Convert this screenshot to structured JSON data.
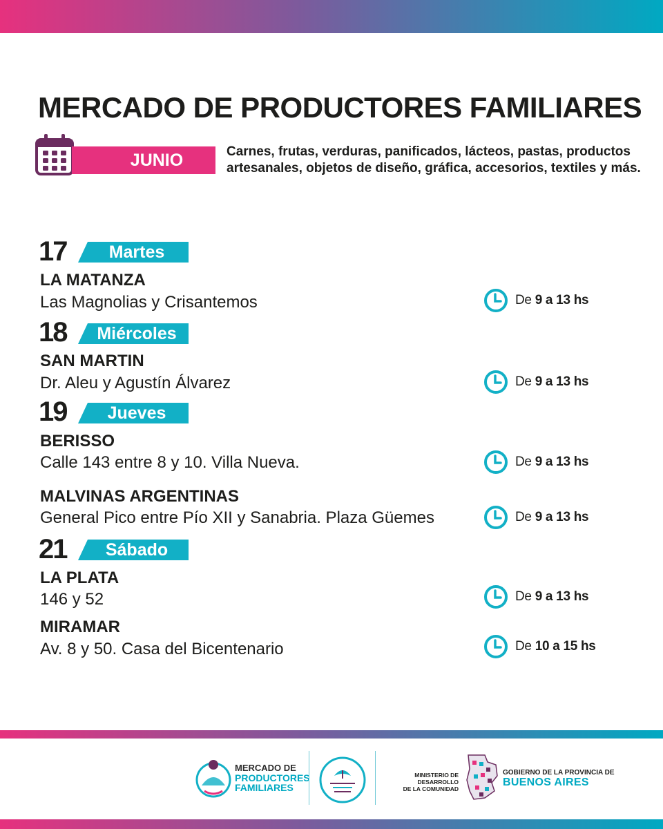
{
  "header": {
    "title": "MERCADO DE PRODUCTORES FAMILIARES",
    "month": "JUNIO",
    "description": "Carnes, frutas, verduras, panificados, lácteos, pastas, productos artesanales, objetos de diseño, gráfica, accesorios, textiles y más."
  },
  "days": [
    {
      "number": "17",
      "weekday": "Martes",
      "locations": [
        {
          "name": "LA MATANZA",
          "address": "Las Magnolias y Crisantemos",
          "time_prefix": "De",
          "time_value": "9 a 13 hs"
        }
      ]
    },
    {
      "number": "18",
      "weekday": "Miércoles",
      "locations": [
        {
          "name": "SAN MARTIN",
          "address": "Dr. Aleu y Agustín Álvarez",
          "time_prefix": "De",
          "time_value": "9 a 13 hs"
        }
      ]
    },
    {
      "number": "19",
      "weekday": "Jueves",
      "locations": [
        {
          "name": "BERISSO",
          "address": "Calle 143 entre 8 y 10. Villa Nueva.",
          "time_prefix": "De",
          "time_value": "9 a 13 hs"
        },
        {
          "name": "MALVINAS ARGENTINAS",
          "address": "General Pico entre Pío XII y Sanabria. Plaza Güemes",
          "time_prefix": "De",
          "time_value": "9 a 13 hs"
        }
      ]
    },
    {
      "number": "21",
      "weekday": "Sábado",
      "locations": [
        {
          "name": "LA PLATA",
          "address": "146 y 52",
          "time_prefix": "De",
          "time_value": "9 a 13 hs"
        },
        {
          "name": "MIRAMAR",
          "address": "Av. 8 y 50. Casa del Bicentenario",
          "time_prefix": "De",
          "time_value": "10 a 15 hs"
        }
      ]
    }
  ],
  "footer": {
    "mercado_line1": "MERCADO DE",
    "mercado_line2": "PRODUCTORES",
    "mercado_line3": "FAMILIARES",
    "ministerio_line1": "MINISTERIO DE DESARROLLO",
    "ministerio_line2": "DE LA COMUNIDAD",
    "gobierno_line1": "GOBIERNO DE LA PROVINCIA DE",
    "gobierno_line2": "BUENOS AIRES",
    "programa_logo_text": "PROGRAMA DE ALIMENTACIÓN SANA, SEGURA Y SOBERANA"
  },
  "colors": {
    "pink": "#e6317e",
    "cyan": "#12b0c6",
    "purple": "#6b2c5f",
    "text": "#1d1d1b"
  },
  "icons": {
    "calendar": "calendar-icon",
    "clock": "clock-icon"
  }
}
